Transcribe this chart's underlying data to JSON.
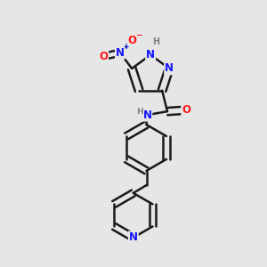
{
  "bg_color": "#e6e6e6",
  "bond_color": "#1a1a1a",
  "bond_width": 1.8,
  "atom_colors": {
    "N": "#1414ff",
    "O": "#ff1414",
    "H": "#808080",
    "C": "#1a1a1a"
  },
  "font_size": 8.5,
  "fig_width": 3.0,
  "fig_height": 3.0,
  "xlim": [
    0.0,
    1.0
  ],
  "ylim": [
    0.0,
    1.0
  ]
}
